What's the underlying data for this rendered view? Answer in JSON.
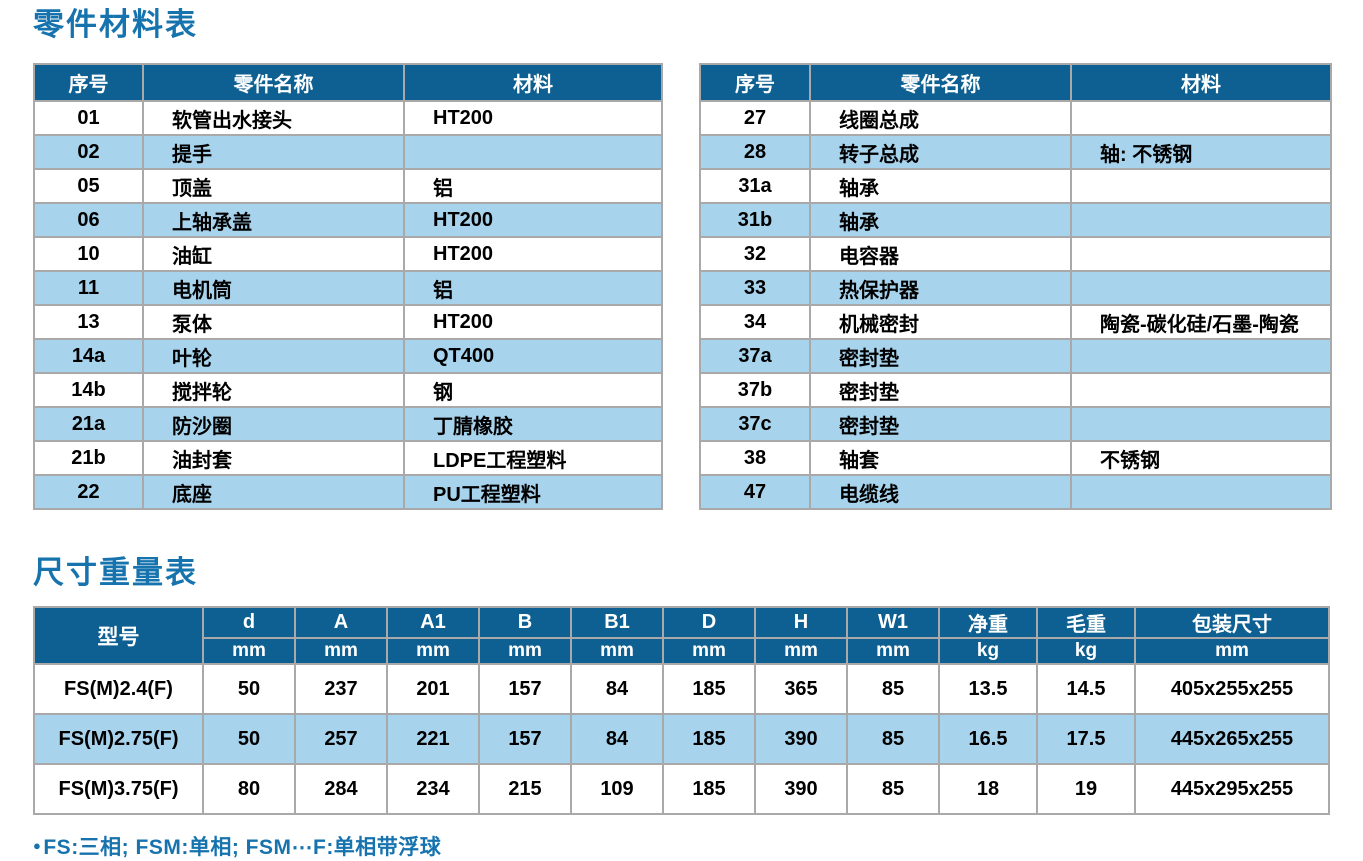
{
  "colors": {
    "title_blue": "#1673ae",
    "table_header_bg": "#0d6091",
    "table_header_text": "#ffffff",
    "row_stripe_bg": "#a7d3ed",
    "row_bg": "#ffffff",
    "grid_border": "#a9a9a9"
  },
  "parts_section": {
    "title": "零件材料表",
    "columns": [
      "序号",
      "零件名称",
      "材料"
    ],
    "left_rows": [
      [
        "01",
        "软管出水接头",
        "HT200"
      ],
      [
        "02",
        "提手",
        ""
      ],
      [
        "05",
        "顶盖",
        "铝"
      ],
      [
        "06",
        "上轴承盖",
        "HT200"
      ],
      [
        "10",
        "油缸",
        "HT200"
      ],
      [
        "11",
        "电机筒",
        "铝"
      ],
      [
        "13",
        "泵体",
        "HT200"
      ],
      [
        "14a",
        "叶轮",
        "QT400"
      ],
      [
        "14b",
        "搅拌轮",
        "钢"
      ],
      [
        "21a",
        "防沙圈",
        "丁腈橡胶"
      ],
      [
        "21b",
        "油封套",
        "LDPE工程塑料"
      ],
      [
        "22",
        "底座",
        "PU工程塑料"
      ]
    ],
    "right_rows": [
      [
        "27",
        "线圈总成",
        ""
      ],
      [
        "28",
        "转子总成",
        "轴: 不锈钢"
      ],
      [
        "31a",
        "轴承",
        ""
      ],
      [
        "31b",
        "轴承",
        ""
      ],
      [
        "32",
        "电容器",
        ""
      ],
      [
        "33",
        "热保护器",
        ""
      ],
      [
        "34",
        "机械密封",
        "陶瓷-碳化硅/石墨-陶瓷"
      ],
      [
        "37a",
        "密封垫",
        ""
      ],
      [
        "37b",
        "密封垫",
        ""
      ],
      [
        "37c",
        "密封垫",
        ""
      ],
      [
        "38",
        "轴套",
        "不锈钢"
      ],
      [
        "47",
        "电缆线",
        ""
      ]
    ]
  },
  "dimensions_section": {
    "title": "尺寸重量表",
    "model_column": "型号",
    "columns": [
      {
        "label": "d",
        "unit": "mm"
      },
      {
        "label": "A",
        "unit": "mm"
      },
      {
        "label": "A1",
        "unit": "mm"
      },
      {
        "label": "B",
        "unit": "mm"
      },
      {
        "label": "B1",
        "unit": "mm"
      },
      {
        "label": "D",
        "unit": "mm"
      },
      {
        "label": "H",
        "unit": "mm"
      },
      {
        "label": "W1",
        "unit": "mm"
      },
      {
        "label": "净重",
        "unit": "kg"
      },
      {
        "label": "毛重",
        "unit": "kg"
      },
      {
        "label": "包装尺寸",
        "unit": "mm"
      }
    ],
    "rows": [
      {
        "model": "FS(M)2.4(F)",
        "values": [
          "50",
          "237",
          "201",
          "157",
          "84",
          "185",
          "365",
          "85",
          "13.5",
          "14.5",
          "405x255x255"
        ]
      },
      {
        "model": "FS(M)2.75(F)",
        "values": [
          "50",
          "257",
          "221",
          "157",
          "84",
          "185",
          "390",
          "85",
          "16.5",
          "17.5",
          "445x265x255"
        ]
      },
      {
        "model": "FS(M)3.75(F)",
        "values": [
          "80",
          "284",
          "234",
          "215",
          "109",
          "185",
          "390",
          "85",
          "18",
          "19",
          "445x295x255"
        ]
      }
    ]
  },
  "footnote": {
    "bullet": "●",
    "text": "FS:三相; FSM:单相; FSM⋯F:单相带浮球"
  }
}
